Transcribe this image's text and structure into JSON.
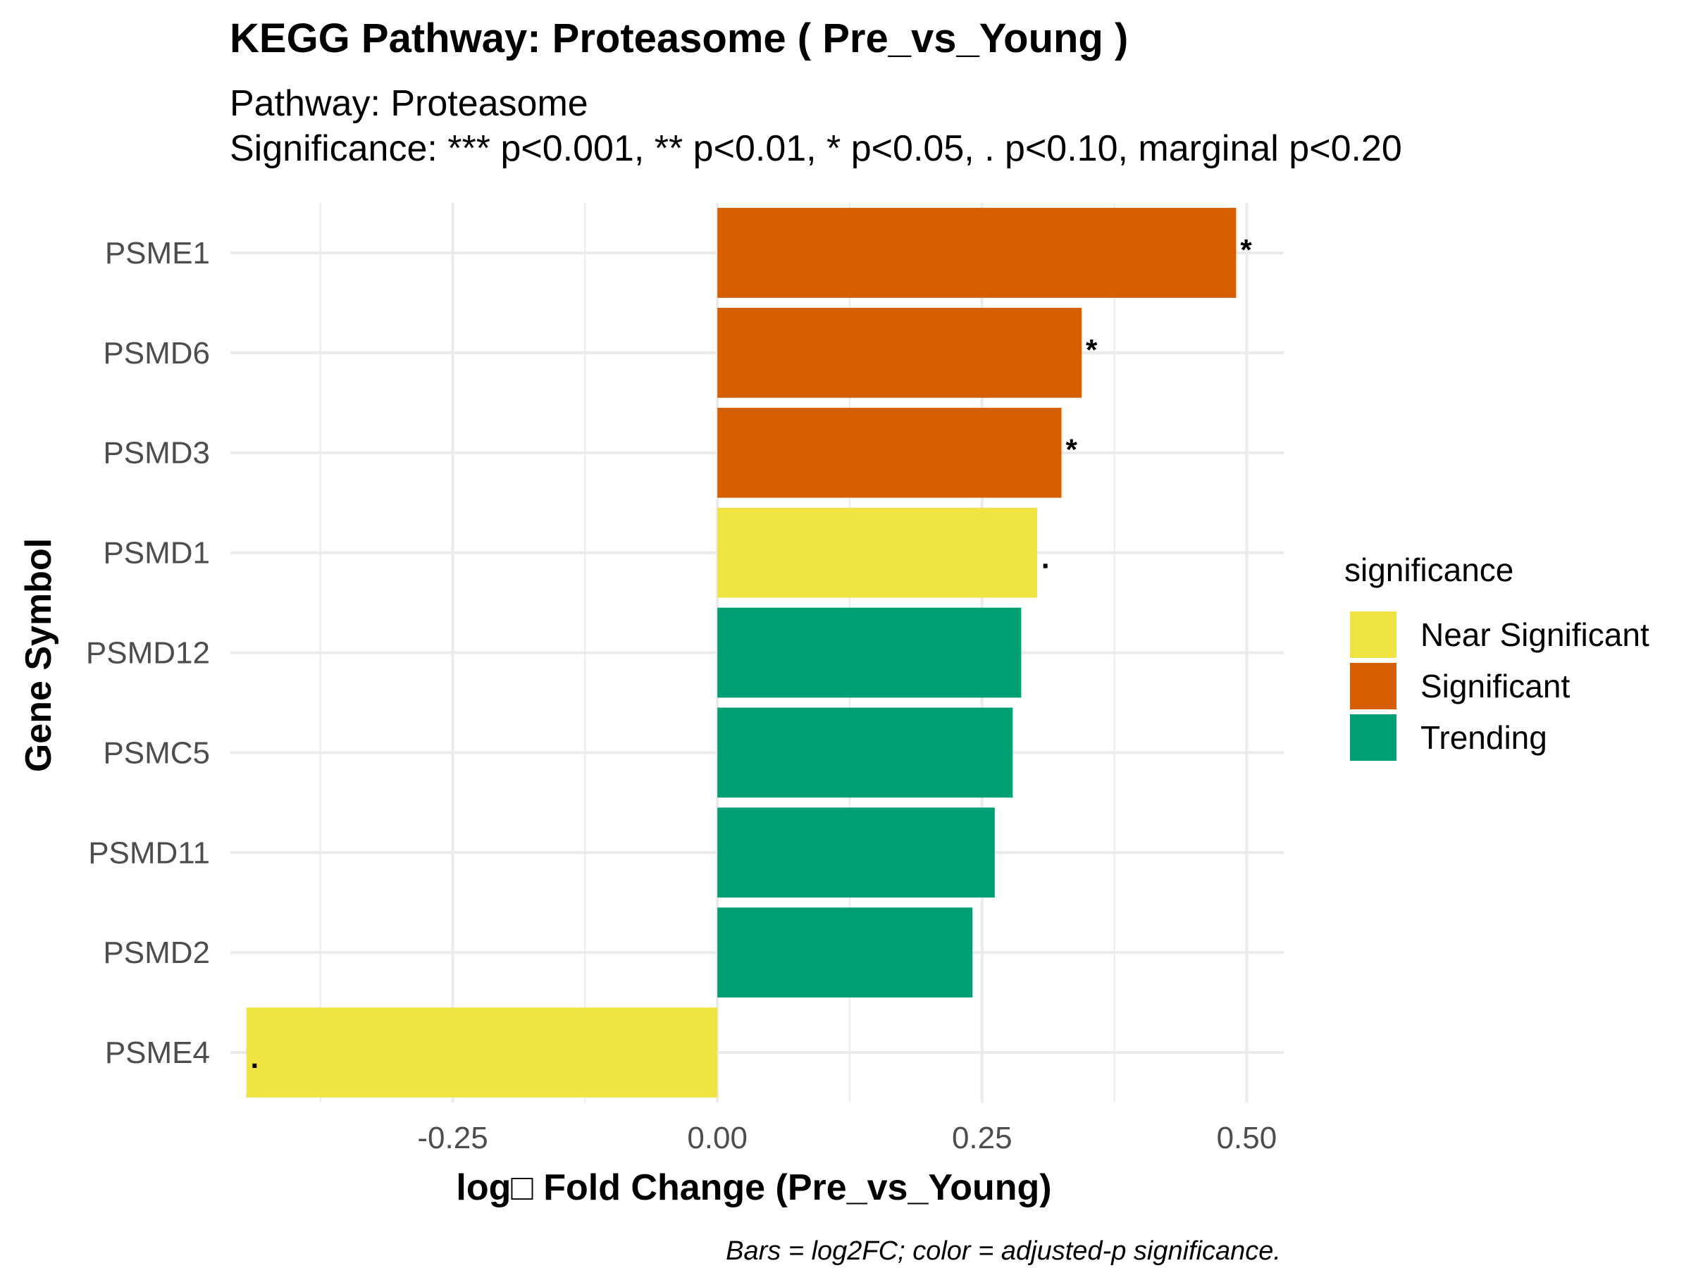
{
  "chart_data": {
    "type": "bar",
    "orientation": "horizontal",
    "title": "KEGG Pathway: Proteasome ( Pre_vs_Young )",
    "subtitle_lines": [
      "Pathway: Proteasome",
      "Significance: *** p<0.001, ** p<0.01, * p<0.05, . p<0.10, marginal p<0.20"
    ],
    "xlabel": "log□ Fold Change (Pre_vs_Young)",
    "ylabel": "Gene Symbol",
    "caption": "Bars = log2FC; color = adjusted-p significance.",
    "xlim": [
      -0.46,
      0.535
    ],
    "x_ticks": [
      -0.25,
      0,
      0.25,
      0.5
    ],
    "x_tick_labels": [
      "-0.25",
      "0.00",
      "0.25",
      "0.50"
    ],
    "x_minor_ticks": [
      -0.375,
      -0.125,
      0.125,
      0.375
    ],
    "categories": [
      "PSME1",
      "PSMD6",
      "PSMD3",
      "PSMD1",
      "PSMD12",
      "PSMC5",
      "PSMD11",
      "PSMD2",
      "PSME4"
    ],
    "values": [
      0.49,
      0.344,
      0.325,
      0.302,
      0.287,
      0.279,
      0.262,
      0.241,
      -0.445
    ],
    "significance": [
      "Significant",
      "Significant",
      "Significant",
      "Near Significant",
      "Trending",
      "Trending",
      "Trending",
      "Trending",
      "Near Significant"
    ],
    "marks": [
      "*",
      "*",
      "*",
      ".",
      "",
      "",
      "",
      "",
      "."
    ],
    "grid": true,
    "legend": {
      "title": "significance",
      "position": "right",
      "entries": [
        {
          "label": "Near Significant",
          "color": "#F0E442"
        },
        {
          "label": "Significant",
          "color": "#D55E00"
        },
        {
          "label": "Trending",
          "color": "#009E73"
        }
      ]
    }
  }
}
